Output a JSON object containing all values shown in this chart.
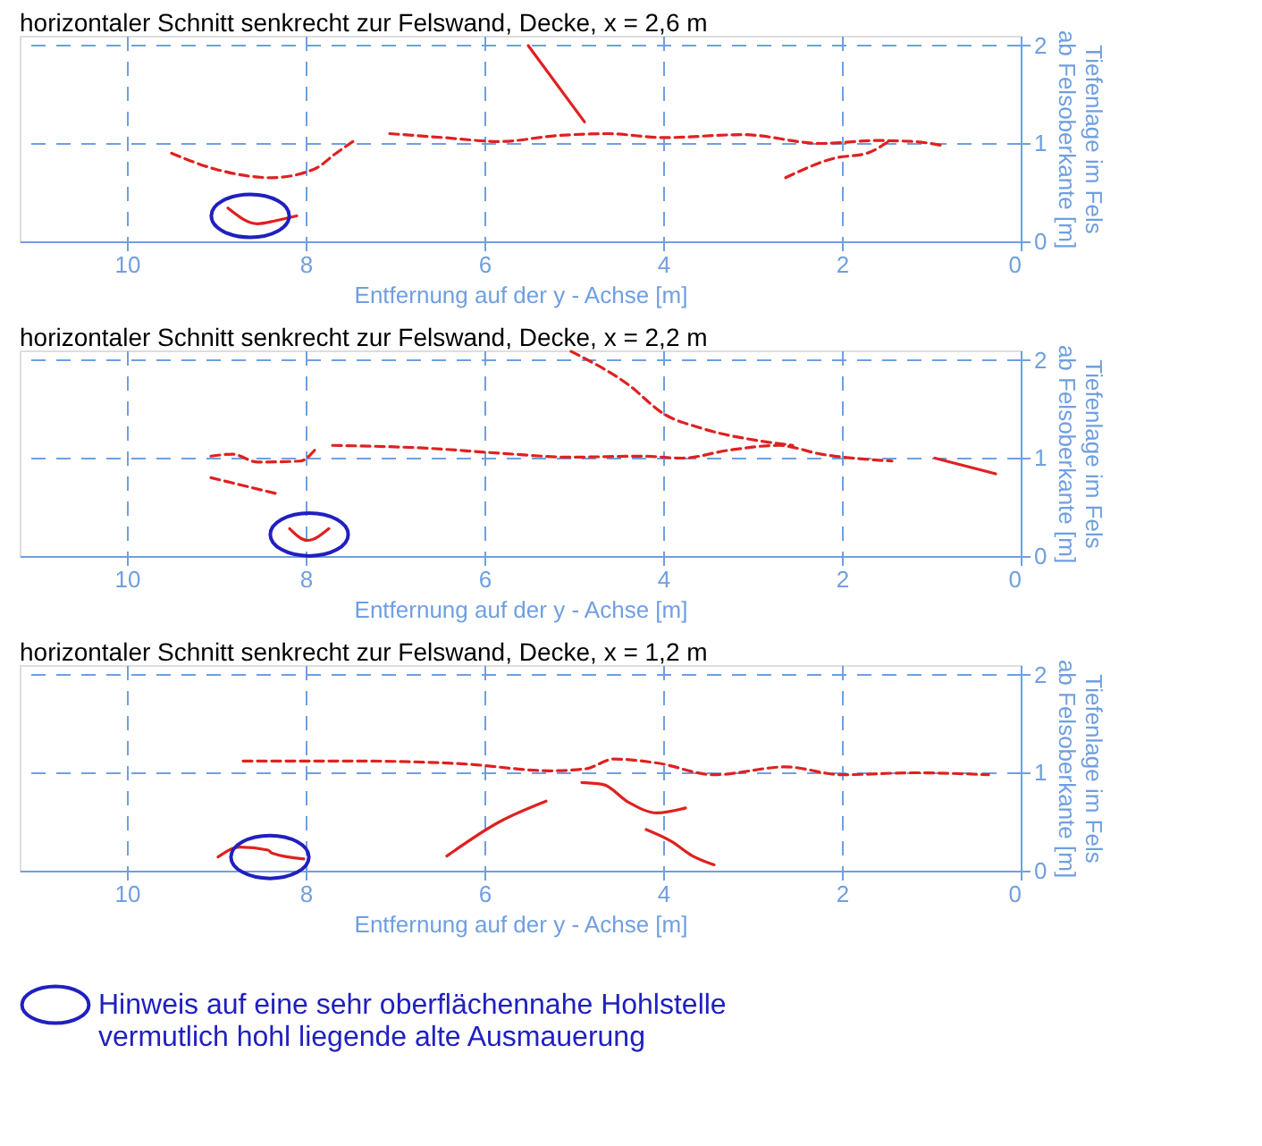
{
  "chart_data": [
    {
      "type": "line",
      "title": "horizontaler Schnitt senkrecht zur Felswand, Decke, x = 2,6 m",
      "xlabel": "Entfernung auf der y - Achse [m]",
      "ylabel": "Tiefenlage im Fels\nab Felsoberkante [m]",
      "xlim": [
        11.2,
        0
      ],
      "ylim": [
        0,
        2.1
      ],
      "xticks": [
        10,
        8,
        6,
        4,
        2,
        0
      ],
      "yticks": [
        0,
        1,
        2
      ],
      "grid": true,
      "legend": false,
      "series": [
        {
          "color": "#e02020",
          "line_style": "solid",
          "x": [
            5.51,
            4.88
          ],
          "values": [
            2.0,
            1.22
          ]
        },
        {
          "color": "#e02020",
          "line_style": "dashed",
          "x": [
            9.5,
            9.02,
            8.38,
            7.9,
            7.66,
            7.44
          ],
          "values": [
            0.9,
            0.74,
            0.65,
            0.74,
            0.9,
            1.04
          ]
        },
        {
          "color": "#e02020",
          "line_style": "dashed",
          "x": [
            7.06,
            6.46,
            5.83,
            5.19,
            4.63,
            3.99,
            3.11,
            2.23,
            1.6,
            1.2,
            0.88
          ],
          "values": [
            1.1,
            1.06,
            1.02,
            1.08,
            1.1,
            1.06,
            1.09,
            1.0,
            1.03,
            1.02,
            0.98
          ]
        },
        {
          "color": "#e02020",
          "line_style": "dashed",
          "x": [
            2.63,
            2.08,
            1.72,
            1.48
          ],
          "values": [
            0.65,
            0.85,
            0.9,
            1.02
          ]
        },
        {
          "color": "#e02020",
          "line_style": "solid",
          "x": [
            8.87,
            8.54,
            8.34,
            8.1
          ],
          "values": [
            0.34,
            0.18,
            0.21,
            0.26
          ]
        },
        {
          "type": "scatter",
          "marker": "circle",
          "color": "#2020c0",
          "x": [
            8.62
          ],
          "values": [
            0.26
          ]
        }
      ]
    },
    {
      "type": "line",
      "title": "horizontaler Schnitt senkrecht zur Felswand, Decke, x = 2,2 m",
      "xlabel": "Entfernung auf der y - Achse [m]",
      "ylabel": "Tiefenlage im Fels\nab Felsoberkante [m]",
      "xlim": [
        11.2,
        0
      ],
      "ylim": [
        0,
        2.1
      ],
      "xticks": [
        10,
        8,
        6,
        4,
        2,
        0
      ],
      "yticks": [
        0,
        1,
        2
      ],
      "grid": true,
      "legend": false,
      "series": [
        {
          "color": "#e02020",
          "line_style": "dashed",
          "x": [
            5.03,
            4.39,
            3.99,
            3.59,
            2.95,
            2.55
          ],
          "values": [
            2.09,
            1.75,
            1.45,
            1.31,
            1.18,
            1.13
          ]
        },
        {
          "color": "#e02020",
          "line_style": "dashed",
          "x": [
            7.7,
            6.62,
            5.83,
            5.03,
            4.23,
            3.79,
            3.27,
            2.71,
            2.23,
            1.44
          ],
          "values": [
            1.13,
            1.1,
            1.05,
            1.01,
            1.02,
            1.0,
            1.08,
            1.13,
            1.04,
            0.97
          ]
        },
        {
          "color": "#e02020",
          "line_style": "dashed",
          "x": [
            9.06,
            8.82,
            8.54,
            8.06,
            7.9
          ],
          "values": [
            1.02,
            1.04,
            0.96,
            0.97,
            1.08
          ]
        },
        {
          "color": "#e02020",
          "line_style": "dashed",
          "x": [
            9.06,
            8.34
          ],
          "values": [
            0.8,
            0.64
          ]
        },
        {
          "color": "#e02020",
          "line_style": "solid",
          "x": [
            0.96,
            0.28
          ],
          "values": [
            1.0,
            0.84
          ]
        },
        {
          "color": "#e02020",
          "line_style": "solid",
          "x": [
            8.18,
            7.98,
            7.74
          ],
          "values": [
            0.28,
            0.16,
            0.28
          ]
        },
        {
          "type": "scatter",
          "marker": "circle",
          "color": "#2020c0",
          "x": [
            7.96
          ],
          "values": [
            0.22
          ]
        }
      ]
    },
    {
      "type": "line",
      "title": "horizontaler Schnitt senkrecht zur Felswand, Decke, x = 1,2 m",
      "xlabel": "Entfernung auf der y - Achse [m]",
      "ylabel": "Tiefenlage im Fels\nab Felsoberkante [m]",
      "xlim": [
        11.2,
        0
      ],
      "ylim": [
        0,
        2.1
      ],
      "xticks": [
        10,
        8,
        6,
        4,
        2,
        0
      ],
      "yticks": [
        0,
        1,
        2
      ],
      "grid": true,
      "legend": "bottom",
      "series": [
        {
          "color": "#e02020",
          "line_style": "dashed",
          "x": [
            8.7,
            7.42,
            6.22,
            5.27,
            4.87,
            4.55,
            4.07,
            3.43,
            2.63,
            2.0,
            1.2,
            0.36
          ],
          "values": [
            1.12,
            1.12,
            1.09,
            1.02,
            1.04,
            1.14,
            1.1,
            0.98,
            1.06,
            0.98,
            1.0,
            0.98
          ]
        },
        {
          "color": "#e02020",
          "line_style": "solid",
          "x": [
            6.42,
            5.83,
            5.31
          ],
          "values": [
            0.15,
            0.5,
            0.71
          ]
        },
        {
          "color": "#e02020",
          "line_style": "solid",
          "x": [
            4.91,
            4.67,
            4.39,
            4.07,
            3.75
          ],
          "values": [
            0.9,
            0.88,
            0.7,
            0.59,
            0.64
          ]
        },
        {
          "color": "#e02020",
          "line_style": "solid",
          "x": [
            4.19,
            3.91,
            3.67,
            3.43
          ],
          "values": [
            0.42,
            0.3,
            0.15,
            0.06
          ]
        },
        {
          "color": "#e02020",
          "line_style": "solid",
          "x": [
            8.98,
            8.74,
            8.42,
            8.38,
            8.02
          ],
          "values": [
            0.14,
            0.24,
            0.21,
            0.18,
            0.12
          ]
        },
        {
          "type": "scatter",
          "marker": "circle",
          "color": "#2020c0",
          "name": "Hinweis auf eine sehr oberflächennahe Hohlstelle\nvermutlich hohl liegende alte Ausmauerung",
          "x": [
            8.4
          ],
          "values": [
            0.14
          ]
        }
      ]
    }
  ]
}
